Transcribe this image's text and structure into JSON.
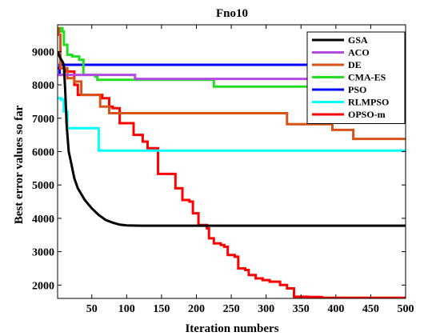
{
  "chart_data": {
    "type": "line",
    "title": "Fno10",
    "xlabel": "Iteration numbers",
    "ylabel": "Best error values so far",
    "xlim": [
      1,
      500
    ],
    "ylim": [
      1600,
      9800
    ],
    "xticks": [
      50,
      100,
      150,
      200,
      250,
      300,
      350,
      400,
      450,
      500
    ],
    "yticks": [
      2000,
      3000,
      4000,
      5000,
      6000,
      7000,
      8000,
      9000
    ],
    "grid": false,
    "legend_position": "top-right",
    "series": [
      {
        "name": "GSA",
        "color": "#000000",
        "step": false,
        "points": [
          [
            1,
            9000
          ],
          [
            5,
            8800
          ],
          [
            8,
            8700
          ],
          [
            10,
            8600
          ],
          [
            12,
            7800
          ],
          [
            14,
            6800
          ],
          [
            17,
            6000
          ],
          [
            20,
            5700
          ],
          [
            25,
            5200
          ],
          [
            30,
            4900
          ],
          [
            40,
            4550
          ],
          [
            50,
            4300
          ],
          [
            60,
            4100
          ],
          [
            70,
            3950
          ],
          [
            80,
            3870
          ],
          [
            90,
            3810
          ],
          [
            100,
            3790
          ],
          [
            120,
            3780
          ],
          [
            150,
            3780
          ],
          [
            500,
            3780
          ]
        ]
      },
      {
        "name": "ACO",
        "color": "#B44BE1",
        "step": true,
        "points": [
          [
            1,
            8300
          ],
          [
            112,
            8300
          ],
          [
            112,
            8180
          ],
          [
            500,
            8180
          ]
        ]
      },
      {
        "name": "DE",
        "color": "#D95319",
        "step": true,
        "points": [
          [
            1,
            9700
          ],
          [
            3,
            9500
          ],
          [
            5,
            8500
          ],
          [
            15,
            8200
          ],
          [
            25,
            8100
          ],
          [
            35,
            7700
          ],
          [
            55,
            7700
          ],
          [
            62,
            7350
          ],
          [
            70,
            7350
          ],
          [
            75,
            7150
          ],
          [
            330,
            7150
          ],
          [
            330,
            6820
          ],
          [
            395,
            6820
          ],
          [
            395,
            6650
          ],
          [
            425,
            6650
          ],
          [
            425,
            6380
          ],
          [
            500,
            6380
          ]
        ]
      },
      {
        "name": "CMA-ES",
        "color": "#22DD22",
        "step": true,
        "points": [
          [
            1,
            9600
          ],
          [
            5,
            9700
          ],
          [
            8,
            9600
          ],
          [
            10,
            9200
          ],
          [
            15,
            8900
          ],
          [
            22,
            8850
          ],
          [
            32,
            8750
          ],
          [
            38,
            8300
          ],
          [
            55,
            8250
          ],
          [
            58,
            8150
          ],
          [
            225,
            8150
          ],
          [
            225,
            7950
          ],
          [
            500,
            7950
          ]
        ]
      },
      {
        "name": "PSO",
        "color": "#0000FF",
        "step": true,
        "points": [
          [
            1,
            8300
          ],
          [
            4,
            8600
          ],
          [
            500,
            8600
          ]
        ]
      },
      {
        "name": "RLMPSO",
        "color": "#00FFFF",
        "step": true,
        "points": [
          [
            1,
            7600
          ],
          [
            6,
            7550
          ],
          [
            10,
            7200
          ],
          [
            15,
            6700
          ],
          [
            60,
            6700
          ],
          [
            60,
            6030
          ],
          [
            500,
            6030
          ]
        ]
      },
      {
        "name": "OPSO-m",
        "color": "#FF0000",
        "step": true,
        "points": [
          [
            1,
            8500
          ],
          [
            10,
            8500
          ],
          [
            12,
            8400
          ],
          [
            25,
            8000
          ],
          [
            30,
            7700
          ],
          [
            60,
            7700
          ],
          [
            65,
            7600
          ],
          [
            75,
            7350
          ],
          [
            80,
            7300
          ],
          [
            88,
            7300
          ],
          [
            90,
            6850
          ],
          [
            105,
            6850
          ],
          [
            110,
            6500
          ],
          [
            120,
            6500
          ],
          [
            123,
            6300
          ],
          [
            130,
            6100
          ],
          [
            145,
            6100
          ],
          [
            145,
            5330
          ],
          [
            165,
            5330
          ],
          [
            170,
            4900
          ],
          [
            178,
            4900
          ],
          [
            180,
            4550
          ],
          [
            190,
            4500
          ],
          [
            195,
            4150
          ],
          [
            200,
            4150
          ],
          [
            203,
            3800
          ],
          [
            215,
            3700
          ],
          [
            218,
            3400
          ],
          [
            225,
            3250
          ],
          [
            235,
            3200
          ],
          [
            240,
            3150
          ],
          [
            245,
            2900
          ],
          [
            255,
            2850
          ],
          [
            260,
            2500
          ],
          [
            270,
            2450
          ],
          [
            275,
            2300
          ],
          [
            285,
            2200
          ],
          [
            295,
            2150
          ],
          [
            305,
            2100
          ],
          [
            320,
            2000
          ],
          [
            330,
            1900
          ],
          [
            340,
            1650
          ],
          [
            360,
            1640
          ],
          [
            380,
            1620
          ],
          [
            500,
            1620
          ]
        ]
      }
    ]
  }
}
